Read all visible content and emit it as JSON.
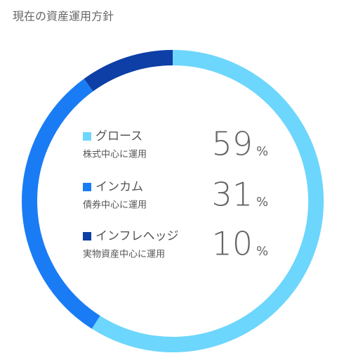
{
  "chart_data": {
    "type": "donut",
    "title": "現在の資産運用方針",
    "categories": [
      "グロース",
      "インカム",
      "インフレヘッジ"
    ],
    "descriptions": [
      "株式中心に運用",
      "債券中心に運用",
      "実物資産中心に運用"
    ],
    "values": [
      59,
      31,
      10
    ],
    "unit": "%",
    "colors": [
      "#6dd6fc",
      "#1a7cf5",
      "#0d3fa6"
    ]
  }
}
